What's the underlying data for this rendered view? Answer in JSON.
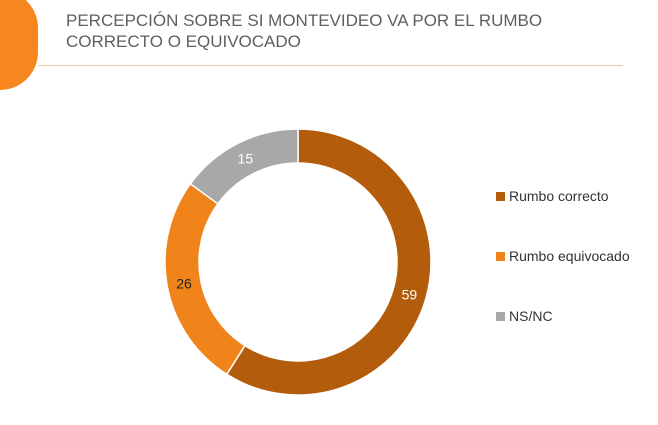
{
  "title_line1": "PERCEPCIÓN SOBRE SI MONTEVIDEO VA POR EL RUMBO",
  "title_line2": "CORRECTO O EQUIVOCADO",
  "chart_data": {
    "type": "pie",
    "donut": true,
    "title": "PERCEPCIÓN SOBRE SI MONTEVIDEO VA POR EL RUMBO CORRECTO O EQUIVOCADO",
    "categories": [
      "Rumbo correcto",
      "Rumbo equivocado",
      "NS/NC"
    ],
    "values": [
      59,
      26,
      15
    ],
    "colors": [
      "#b35c0c",
      "#f0841a",
      "#a8a8a8"
    ],
    "data_labels": [
      "59",
      "26",
      "15"
    ],
    "legend_position": "right"
  },
  "accent_color": "#f7861e"
}
